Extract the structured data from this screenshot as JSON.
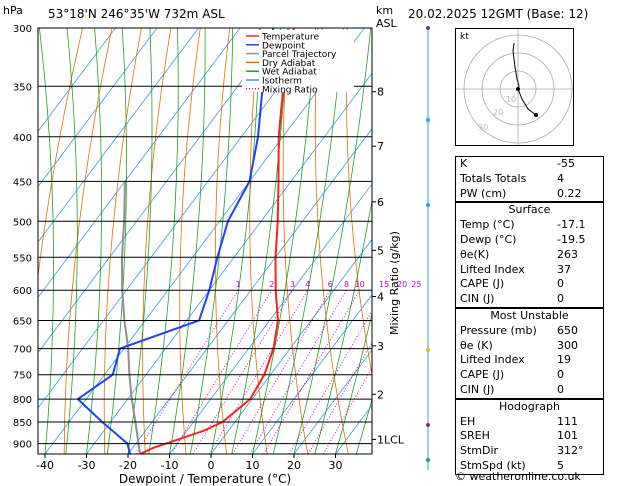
{
  "header": {
    "location": "53°18'N 246°35'W 732m ASL",
    "datetime": "20.02.2025 12GMT (Base: 12)",
    "pressure_unit": "hPa",
    "height_unit_km": "km",
    "height_unit_asl": "ASL"
  },
  "chart_data": {
    "type": "skew-t",
    "xlabel": "Dewpoint / Temperature (°C)",
    "ylabel_right": "Mixing Ratio (g/kg)",
    "pressure_ticks": [
      300,
      350,
      400,
      450,
      500,
      550,
      600,
      650,
      700,
      750,
      800,
      850,
      900
    ],
    "temperature_ticks": [
      -40,
      -30,
      -20,
      -10,
      0,
      10,
      20,
      30
    ],
    "xlim": [
      -40,
      40
    ],
    "ylim_hpa": [
      925,
      300
    ],
    "height_ticks_km": [
      "8",
      "7",
      "6",
      "5",
      "4",
      "3",
      "2",
      "1LCL"
    ],
    "height_tick_pressures": [
      355,
      410,
      475,
      540,
      610,
      695,
      790,
      890
    ],
    "mixing_ratio_labels": [
      "1",
      "2",
      "3",
      "4",
      "6",
      "8",
      "10",
      "15",
      "20",
      "25"
    ],
    "mixing_ratio_values": [
      1,
      2,
      3,
      4,
      6,
      8,
      10,
      15,
      20,
      25
    ],
    "legend": [
      "Temperature",
      "Dewpoint",
      "Parcel Trajectory",
      "Dry Adiabat",
      "Wet Adiabat",
      "Isotherm",
      "Mixing Ratio"
    ],
    "legend_colors": [
      "#ff2020",
      "#2040ff",
      "#909090",
      "#e07000",
      "#20a020",
      "#30a0e0",
      "#c000c0"
    ],
    "temperature_profile": [
      [
        925,
        -17.1
      ],
      [
        910,
        -15
      ],
      [
        870,
        -6
      ],
      [
        850,
        -3
      ],
      [
        800,
        -0.5
      ],
      [
        750,
        -1.5
      ],
      [
        700,
        -4
      ],
      [
        650,
        -8
      ],
      [
        600,
        -14
      ],
      [
        550,
        -20
      ],
      [
        500,
        -26
      ],
      [
        450,
        -33
      ],
      [
        400,
        -41
      ],
      [
        350,
        -49
      ],
      [
        300,
        -57
      ]
    ],
    "dewpoint_profile": [
      [
        925,
        -19.5
      ],
      [
        900,
        -22
      ],
      [
        850,
        -32
      ],
      [
        800,
        -42
      ],
      [
        750,
        -38
      ],
      [
        700,
        -41
      ],
      [
        650,
        -27
      ],
      [
        600,
        -30
      ],
      [
        550,
        -34
      ],
      [
        500,
        -38
      ],
      [
        450,
        -40
      ],
      [
        400,
        -46
      ],
      [
        350,
        -54
      ],
      [
        300,
        -62
      ]
    ],
    "parcel_profile": [
      [
        925,
        -17.1
      ],
      [
        850,
        -24
      ],
      [
        800,
        -29
      ],
      [
        750,
        -34
      ],
      [
        700,
        -39
      ],
      [
        650,
        -45
      ],
      [
        600,
        -51
      ],
      [
        550,
        -57
      ],
      [
        500,
        -63
      ],
      [
        450,
        -70
      ]
    ],
    "grid": true
  },
  "indices": {
    "rows": [
      {
        "label": "K",
        "value": "-55"
      },
      {
        "label": "Totals Totals",
        "value": "4"
      },
      {
        "label": "PW (cm)",
        "value": "0.22"
      }
    ]
  },
  "surface": {
    "title": "Surface",
    "rows": [
      {
        "label": "Temp (°C)",
        "value": "-17.1"
      },
      {
        "label": "Dewp (°C)",
        "value": "-19.5"
      },
      {
        "label": "θe(K)",
        "value": "263"
      },
      {
        "label": "Lifted Index",
        "value": "37"
      },
      {
        "label": "CAPE (J)",
        "value": "0"
      },
      {
        "label": "CIN (J)",
        "value": "0"
      }
    ]
  },
  "most_unstable": {
    "title": "Most Unstable",
    "rows": [
      {
        "label": "Pressure (mb)",
        "value": "650"
      },
      {
        "label": "θe (K)",
        "value": "300"
      },
      {
        "label": "Lifted Index",
        "value": "19"
      },
      {
        "label": "CAPE (J)",
        "value": "0"
      },
      {
        "label": "CIN (J)",
        "value": "0"
      }
    ]
  },
  "hodograph": {
    "title": "Hodograph",
    "corner_label": "kt",
    "ring_labels": [
      "10",
      "20",
      "30"
    ],
    "rows": [
      {
        "label": "EH",
        "value": "111"
      },
      {
        "label": "SREH",
        "value": "101"
      },
      {
        "label": "StmDir",
        "value": "312°"
      },
      {
        "label": "StmSpd (kt)",
        "value": "5"
      }
    ]
  },
  "footer": {
    "copyright": "© weatheronline.co.uk"
  }
}
